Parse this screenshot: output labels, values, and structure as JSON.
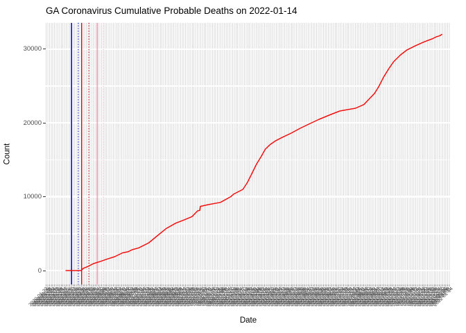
{
  "chart_data": {
    "type": "line",
    "title": "GA Coronavirus Cumulative Probable Deaths on 2022-01-14",
    "xlabel": "Date",
    "ylabel": "Count",
    "x_axis": {
      "kind": "date",
      "first_label": "2020-01-22",
      "last_label": "2022-01-14",
      "domain_days": 723,
      "label_step_days": 3,
      "label_angle_deg": 45,
      "labels_illegible_overlap": true
    },
    "y_axis": {
      "ticks": [
        0,
        10000,
        20000,
        30000
      ],
      "tick_labels": [
        "0",
        "10000",
        "20000",
        "30000"
      ],
      "minor_ticks": [
        5000,
        15000,
        25000
      ],
      "range": [
        -1880,
        33560
      ],
      "grid": true
    },
    "legend": "none",
    "series": [
      {
        "name": "cumulative-probable-deaths",
        "color": "#f10e0e",
        "points": [
          [
            36,
            0
          ],
          [
            63,
            0
          ],
          [
            67,
            300
          ],
          [
            75,
            550
          ],
          [
            85,
            940
          ],
          [
            98,
            1250
          ],
          [
            110,
            1570
          ],
          [
            123,
            1880
          ],
          [
            137,
            2400
          ],
          [
            147,
            2550
          ],
          [
            154,
            2820
          ],
          [
            166,
            3070
          ],
          [
            184,
            3760
          ],
          [
            199,
            4700
          ],
          [
            215,
            5700
          ],
          [
            232,
            6420
          ],
          [
            246,
            6830
          ],
          [
            261,
            7300
          ],
          [
            271,
            8080
          ],
          [
            275,
            8150
          ],
          [
            276,
            8700
          ],
          [
            290,
            8930
          ],
          [
            312,
            9240
          ],
          [
            331,
            10050
          ],
          [
            335,
            10340
          ],
          [
            352,
            11000
          ],
          [
            360,
            11940
          ],
          [
            368,
            13160
          ],
          [
            376,
            14380
          ],
          [
            385,
            15510
          ],
          [
            392,
            16450
          ],
          [
            401,
            17100
          ],
          [
            410,
            17570
          ],
          [
            422,
            18040
          ],
          [
            438,
            18610
          ],
          [
            454,
            19270
          ],
          [
            472,
            19930
          ],
          [
            488,
            20490
          ],
          [
            509,
            21150
          ],
          [
            525,
            21620
          ],
          [
            553,
            22000
          ],
          [
            568,
            22500
          ],
          [
            578,
            23300
          ],
          [
            587,
            24000
          ],
          [
            595,
            25000
          ],
          [
            603,
            26200
          ],
          [
            612,
            27300
          ],
          [
            621,
            28300
          ],
          [
            633,
            29200
          ],
          [
            645,
            29900
          ],
          [
            661,
            30500
          ],
          [
            676,
            31000
          ],
          [
            690,
            31400
          ],
          [
            698,
            31700
          ],
          [
            703,
            31800
          ],
          [
            707,
            32000
          ]
        ],
        "final_value_approx": 32000
      }
    ],
    "vlines": [
      {
        "day_offset": 46,
        "color": "#0a0ad2",
        "style": "solid",
        "width": 1.6
      },
      {
        "day_offset": 58,
        "color": "#0a0ad2",
        "style": "dotted",
        "width": 1.2
      },
      {
        "day_offset": 64,
        "color": "#e60000",
        "style": "solid",
        "width": 1.4
      },
      {
        "day_offset": 77,
        "color": "#e60000",
        "style": "dotted",
        "width": 1.2
      },
      {
        "day_offset": 92,
        "color": "#ffaec2",
        "style": "solid",
        "width": 2.0
      },
      {
        "day_offset": 103,
        "color": "#ffc3d2",
        "style": "dotted",
        "width": 1.6
      }
    ],
    "colors": {
      "line": "#f10e0e",
      "grid_vertical": "#dcdcdc",
      "grid_horizontal": "#ffffff",
      "tick_label": "#4d4d4d",
      "background": "#ffffff"
    }
  }
}
